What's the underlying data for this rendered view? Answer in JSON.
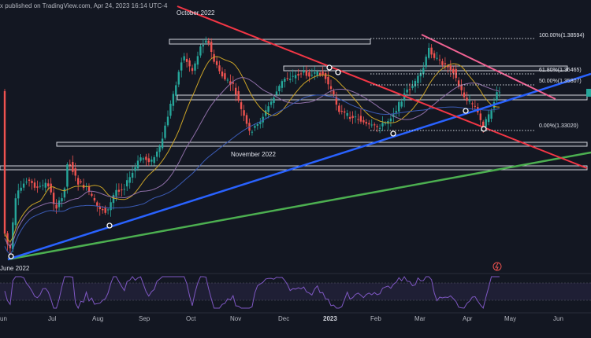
{
  "header": {
    "publisher": "x published on TradingView.com, Apr 24, 2023 16:14 UTC-4"
  },
  "chart_data": {
    "type": "candlestick",
    "x_axis": {
      "ticks": [
        "un",
        "Jul",
        "Aug",
        "Sep",
        "Oct",
        "Nov",
        "Dec",
        "2023",
        "Feb",
        "Mar",
        "Apr",
        "May",
        "Jun"
      ],
      "bold_ticks": [
        "2023"
      ]
    },
    "annotations": [
      {
        "name": "october-2022",
        "text": "October 2022"
      },
      {
        "name": "november-2022",
        "text": "November 2022"
      },
      {
        "name": "june-2022",
        "text": "June 2022"
      }
    ],
    "fibonacci": [
      {
        "level": "100.0%",
        "price": "1.38594",
        "label": "100.00%(1.38594)"
      },
      {
        "level": "61.8%",
        "price": "1.36465",
        "label": "61.80%(1.36465)"
      },
      {
        "level": "50.0%",
        "price": "1.35807",
        "label": "50.00%(1.35807)"
      },
      {
        "level": "0.0%",
        "price": "1.33020",
        "label": "0.00%(1.33020)"
      }
    ],
    "colors": {
      "background": "#131722",
      "up_candle": "#26a69a",
      "down_candle": "#ef5350",
      "resistance_red": "#f23645",
      "trend_blue": "#2962ff",
      "trend_green": "#4caf50",
      "pink_channel": "#f06292",
      "ma_fast": "#c9a227",
      "ma_slow": "#8f6fa8",
      "ma_long": "#3b5bb5",
      "rsi": "#7e57c2"
    }
  }
}
